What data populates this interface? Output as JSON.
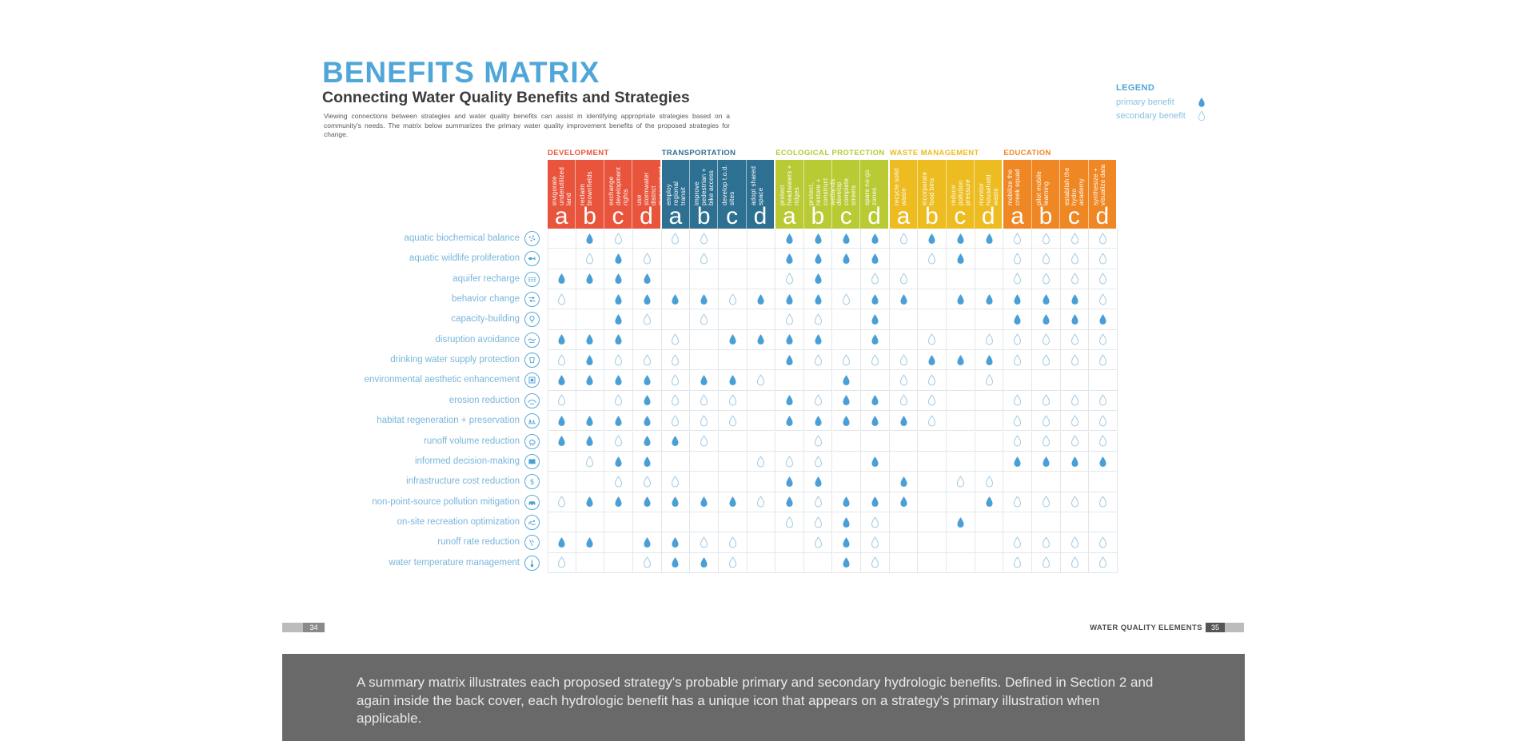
{
  "page": {
    "title": "BENEFITS MATRIX",
    "subtitle": "Connecting Water Quality Benefits and Strategies",
    "intro": "Viewing connections between strategies and water quality benefits can assist in identifying appropriate strategies based on a community's needs. The matrix below summarizes the primary water quality improvement benefits of the proposed strategies for change."
  },
  "legend": {
    "title": "LEGEND",
    "primary_label": "primary benefit",
    "secondary_label": "secondary benefit"
  },
  "footer": {
    "left_page_number": "34",
    "right_section_label": "WATER QUALITY ELEMENTS",
    "right_page_number": "35"
  },
  "caption": {
    "text": "A summary matrix illustrates each proposed strategy's probable primary and secondary hydrologic benefits. Defined in Section 2 and again inside the back cover, each hydrologic benefit has a unique icon that appears on a strategy's primary illustration when applicable."
  },
  "colors": {
    "title_blue": "#4fa6d8",
    "development": "#e8543c",
    "transportation": "#2d7092",
    "ecological_protection": "#b9ca34",
    "waste_management": "#ecbc20",
    "education": "#ef8824",
    "droplet_primary_fill": "#4aa0d6",
    "droplet_secondary_stroke": "#a9cde4",
    "row_label_blue": "#79b6dc",
    "caption_background": "#696969"
  },
  "chart_data": {
    "type": "heatmap",
    "title": "BENEFITS MATRIX",
    "cell_code_legend": {
      "P": "primary benefit (filled droplet)",
      "S": "secondary benefit (outlined droplet)",
      ".": "no benefit"
    },
    "column_letters": [
      "a",
      "b",
      "c",
      "d"
    ],
    "column_groups": [
      {
        "name": "DEVELOPMENT",
        "color": "#e8543c",
        "strategies": [
          "invigorate underutilized land",
          "reclaim brownfields",
          "exchange development rights",
          "use stormwater district management"
        ]
      },
      {
        "name": "TRANSPORTATION",
        "color": "#2d7092",
        "strategies": [
          "employ regional transit",
          "improve pedestrian + bike access",
          "develop t.o.d. sites",
          "adopt shared space"
        ]
      },
      {
        "name": "ECOLOGICAL PROTECTION",
        "color": "#b9ca34",
        "strategies": [
          "protect headwaters + ridges",
          "protect, restore + construct wetlands",
          "develop complete streets",
          "spare no-go zones"
        ]
      },
      {
        "name": "WASTE MANAGEMENT",
        "color": "#ecbc20",
        "strategies": [
          "recycle solid waste",
          "incorporate food bins",
          "reduce pollution pressure",
          "monitor household waste"
        ]
      },
      {
        "name": "EDUCATION",
        "color": "#ef8824",
        "strategies": [
          "mobilize the creek squad",
          "pilot mobile learning",
          "establish the hydro academy",
          "synthesize + visualize data"
        ]
      }
    ],
    "rows": [
      {
        "label": "aquatic biochemical balance",
        "icon": "molecules-icon",
        "cells": ".PS.SS..PPPPSPPPSSSS"
      },
      {
        "label": "aquatic wildlife proliferation",
        "icon": "fish-icon",
        "cells": ".SPS.S..PPPP.SP.SSSS"
      },
      {
        "label": "aquifer recharge",
        "icon": "aquifer-icon",
        "cells": "PPPP....SP.SS...SSSS"
      },
      {
        "label": "behavior change",
        "icon": "behavior-arrows-icon",
        "cells": "S.PPPPSPPPSPP.PPPPPS"
      },
      {
        "label": "capacity-building",
        "icon": "lightbulb-icon",
        "cells": "..PS.S..SS.P....PPPP"
      },
      {
        "label": "disruption avoidance",
        "icon": "wave-icon",
        "cells": "PPP.S.PPPP.P.S.SSSSS"
      },
      {
        "label": "drinking water supply protection",
        "icon": "cup-icon",
        "cells": "SPSSS...PSSSSPPPSSSS"
      },
      {
        "label": "environmental aesthetic enhancement",
        "icon": "frame-icon",
        "cells": "PPPPSPPS..P.SS.S...."
      },
      {
        "label": "erosion reduction",
        "icon": "hill-icon",
        "cells": "S.SPSSS.PSPPSS..SSSS"
      },
      {
        "label": "habitat regeneration + preservation",
        "icon": "trees-icon",
        "cells": "PPPPSSS.PPPPPS..SSSS"
      },
      {
        "label": "runoff volume reduction",
        "icon": "rain-cloud-icon",
        "cells": "PPSPPS...S......SSSS"
      },
      {
        "label": "informed decision-making",
        "icon": "book-icon",
        "cells": ".SPP...SSS.P....PPPP"
      },
      {
        "label": "infrastructure cost reduction",
        "icon": "dollar-icon",
        "cells": "..SSS...PP..P.SS...."
      },
      {
        "label": "non-point-source pollution mitigation",
        "icon": "car-icon",
        "cells": "SPPPPPPSPSPPP..PSSSS"
      },
      {
        "label": "on-site recreation optimization",
        "icon": "swimmer-icon",
        "cells": "........SSPS..P....."
      },
      {
        "label": "runoff rate reduction",
        "icon": "rain-lines-icon",
        "cells": "PP.PPSS..SPS....SSSS"
      },
      {
        "label": "water temperature management",
        "icon": "thermometer-icon",
        "cells": "S..SPPS...PS....SSSS"
      }
    ]
  }
}
